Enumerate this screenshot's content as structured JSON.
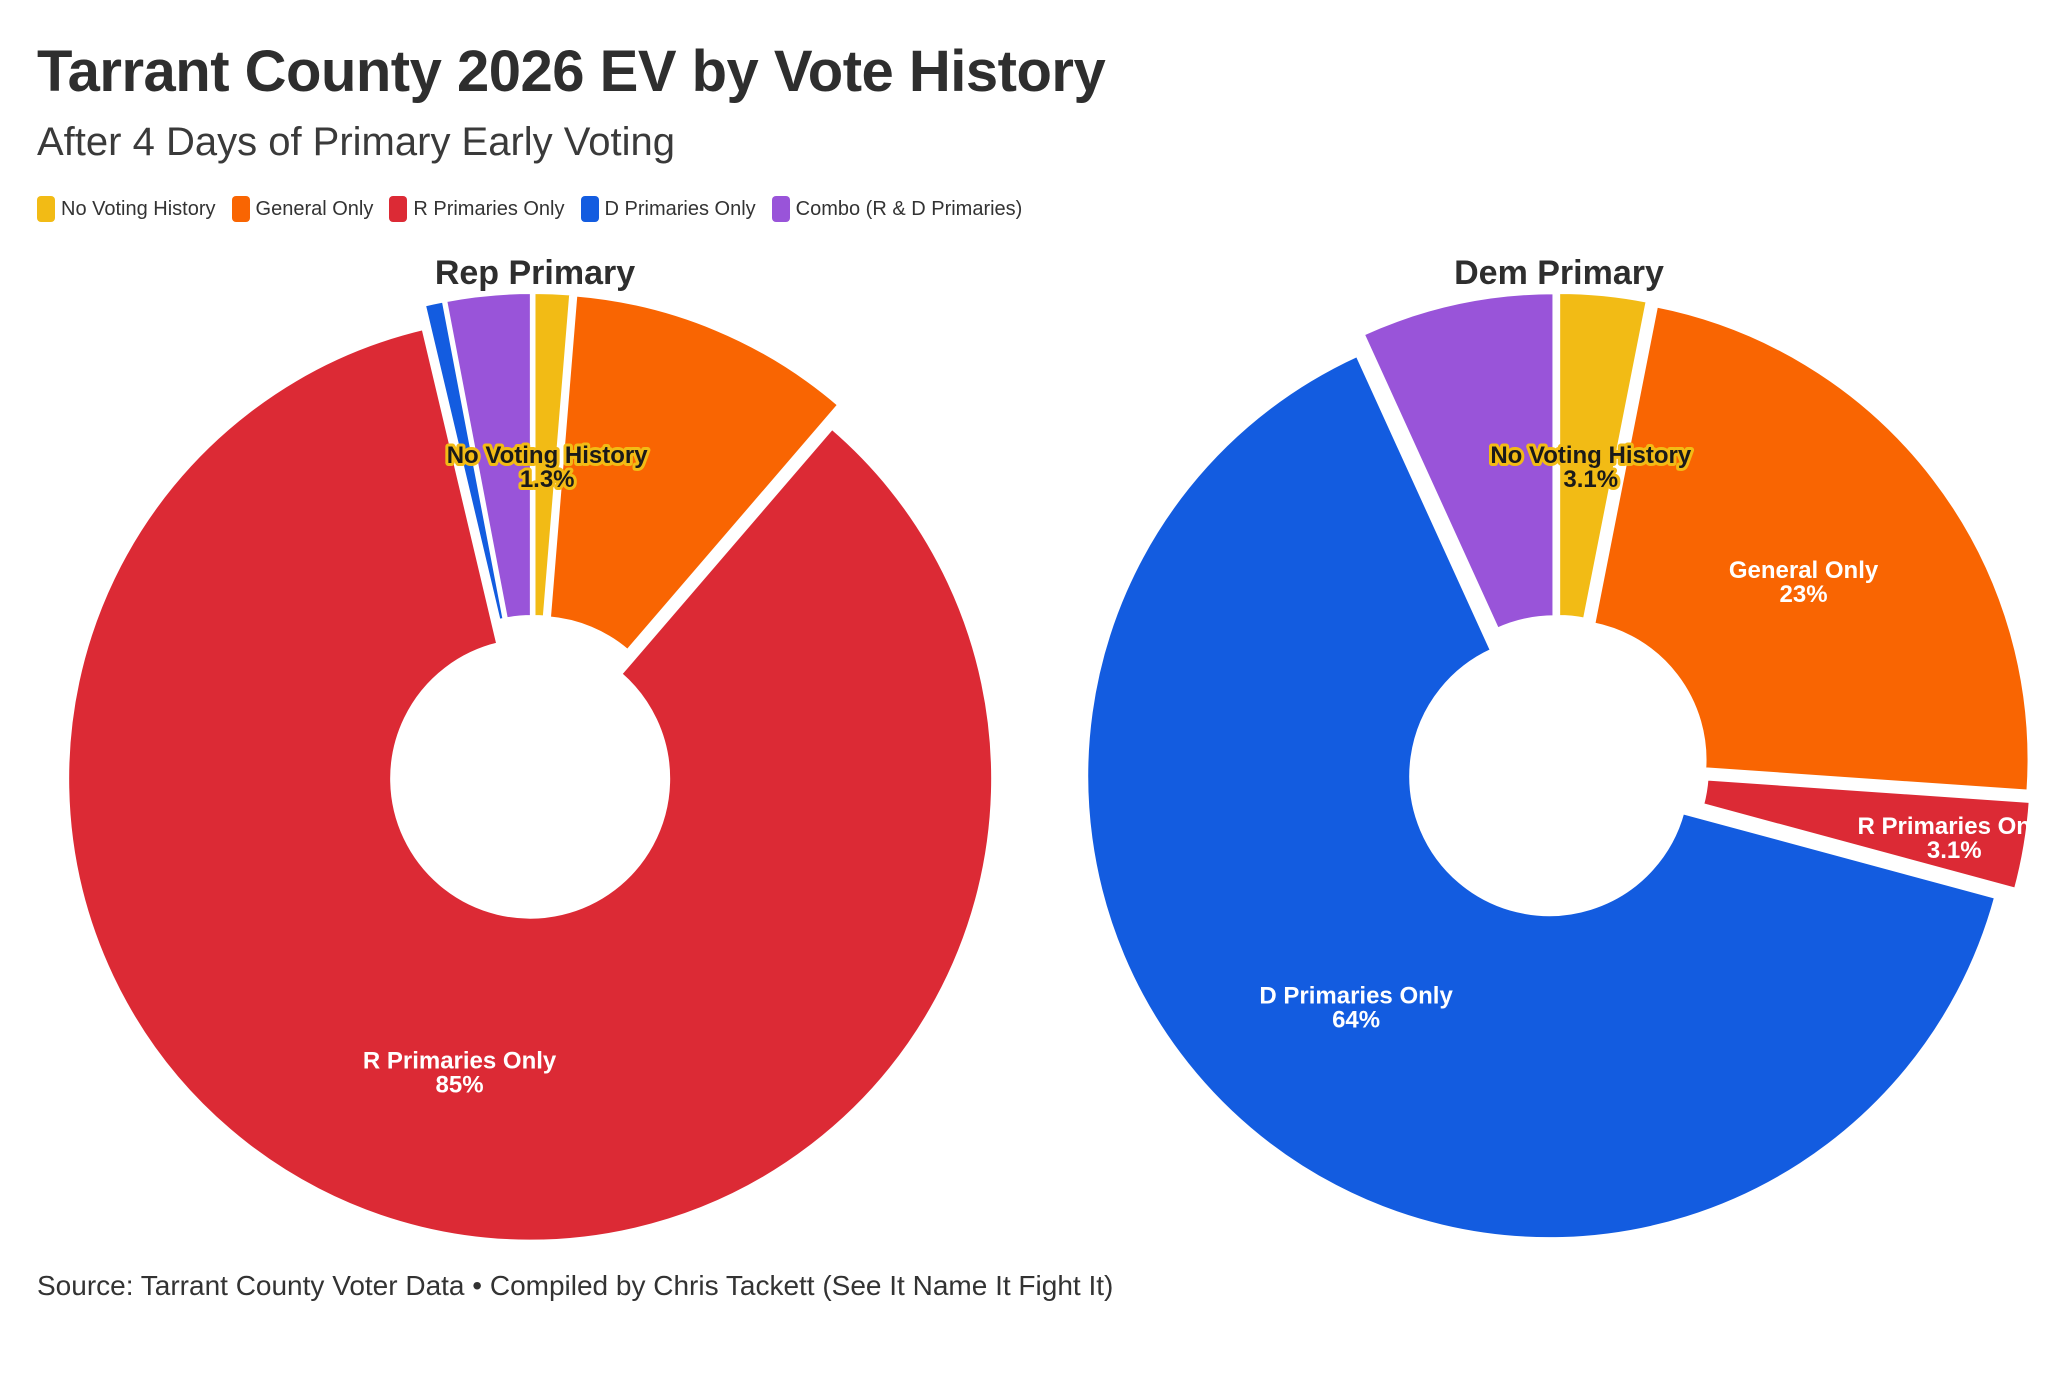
{
  "title": "Tarrant County 2026 EV by Vote History",
  "subtitle": "After 4 Days of Primary Early Voting",
  "legend": [
    {
      "label": "No Voting History",
      "color": "#f2bb15"
    },
    {
      "label": "General Only",
      "color": "#f96502"
    },
    {
      "label": "R Primaries Only",
      "color": "#dc2a35"
    },
    {
      "label": "D Primaries Only",
      "color": "#135ce0"
    },
    {
      "label": "Combo (R & D Primaries)",
      "color": "#9954d9"
    }
  ],
  "source": "Source: Tarrant County Voter Data • Compiled by Chris Tackett (See It Name It Fight It)",
  "chart_data": [
    {
      "type": "pie",
      "title": "Rep Primary",
      "categories": [
        "No Voting History",
        "General Only",
        "R Primaries Only",
        "D Primaries Only",
        "Combo (R & D Primaries)"
      ],
      "values": [
        1.3,
        10.0,
        85.0,
        0.7,
        3.0
      ],
      "labels": [
        {
          "category": "No Voting History",
          "text": "No Voting History",
          "value": "1.3%"
        },
        {
          "category": "R Primaries Only",
          "text": "R Primaries Only",
          "value": "85%"
        }
      ]
    },
    {
      "type": "pie",
      "title": "Dem Primary",
      "categories": [
        "No Voting History",
        "General Only",
        "R Primaries Only",
        "D Primaries Only",
        "Combo (R & D Primaries)"
      ],
      "values": [
        3.1,
        23.0,
        3.1,
        64.0,
        6.8
      ],
      "labels": [
        {
          "category": "No Voting History",
          "text": "No Voting History",
          "value": "3.1%"
        },
        {
          "category": "General Only",
          "text": "General Only",
          "value": "23%"
        },
        {
          "category": "R Primaries Only",
          "text": "R Primaries Only",
          "value": "3.1%"
        },
        {
          "category": "D Primaries Only",
          "text": "D Primaries Only",
          "value": "64%"
        }
      ]
    }
  ]
}
